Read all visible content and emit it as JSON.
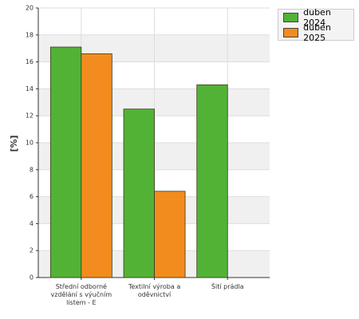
{
  "chart_data": {
    "type": "bar",
    "y_label": "[%]",
    "categories": [
      "Střední odborné vzdělání s výučním listem - E",
      "Textilní výroba a oděvnictví",
      "Šití prádla"
    ],
    "series": [
      {
        "name": "duben 2024",
        "color": "#52b236",
        "values": [
          17.1,
          12.5,
          14.3
        ]
      },
      {
        "name": "duben 2025",
        "color": "#f28c1e",
        "values": [
          16.6,
          6.4,
          null
        ]
      }
    ],
    "ylim": [
      0,
      20
    ],
    "yticks": [
      0,
      2,
      4,
      6,
      8,
      10,
      12,
      14,
      16,
      18,
      20
    ],
    "grid": true
  }
}
